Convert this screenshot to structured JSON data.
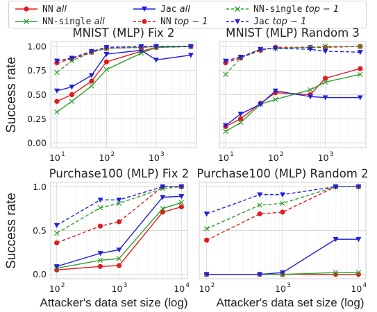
{
  "legend": [
    {
      "code": "NN",
      "sub": "all",
      "color": "#e41a1c",
      "dash": false,
      "marker": "circle"
    },
    {
      "code": "NN-single",
      "sub": "all",
      "color": "#2ca02c",
      "dash": false,
      "marker": "x"
    },
    {
      "code": "Jac",
      "sub": "all",
      "color": "#1f1fdf",
      "dash": false,
      "marker": "triangle-down"
    },
    {
      "code": "NN",
      "sub": "top − 1",
      "color": "#e41a1c",
      "dash": true,
      "marker": "circle"
    },
    {
      "code": "NN-single",
      "sub": "top − 1",
      "color": "#2ca02c",
      "dash": true,
      "marker": "x"
    },
    {
      "code": "Jac",
      "sub": "top − 1",
      "color": "#1f1fdf",
      "dash": true,
      "marker": "triangle-down"
    }
  ],
  "labels": {
    "ylabel": "Success rate",
    "xlabel": "Attacker's data set size (log)"
  },
  "chart_data": [
    {
      "type": "line",
      "title": "MNIST (MLP) Fix 2",
      "xscale": "log",
      "xlim": [
        7.5,
        6500
      ],
      "ylim": [
        -0.05,
        1.05
      ],
      "xticks": [
        {
          "v": 10,
          "base": "10",
          "exp": "1"
        },
        {
          "v": 100,
          "base": "10",
          "exp": "2"
        },
        {
          "v": 1000,
          "base": "10",
          "exp": "3"
        }
      ],
      "yticks": [
        "0.00",
        "0.25",
        "0.50",
        "0.75",
        "1.00"
      ],
      "x": [
        10,
        20,
        50,
        100,
        500,
        1000,
        5000
      ],
      "series": [
        {
          "key": "nn_all",
          "values": [
            0.43,
            0.5,
            0.64,
            0.84,
            0.95,
            0.99,
            1.0
          ]
        },
        {
          "key": "nns_all",
          "values": [
            0.32,
            0.43,
            0.59,
            0.76,
            0.93,
            0.99,
            1.0
          ]
        },
        {
          "key": "jac_all",
          "values": [
            0.54,
            0.58,
            0.7,
            0.92,
            0.96,
            0.86,
            0.91
          ]
        },
        {
          "key": "nn_top1",
          "values": [
            0.83,
            0.87,
            0.94,
            0.98,
            0.99,
            1.0,
            1.0
          ]
        },
        {
          "key": "nns_top1",
          "values": [
            0.73,
            0.85,
            0.94,
            0.98,
            0.99,
            1.0,
            1.0
          ]
        },
        {
          "key": "jac_top1",
          "values": [
            0.85,
            0.88,
            0.95,
            0.99,
            1.0,
            1.0,
            1.0
          ]
        }
      ]
    },
    {
      "type": "line",
      "title": "MNIST (MLP) Random 3",
      "xscale": "log",
      "xlim": [
        7.5,
        6500
      ],
      "ylim": [
        -0.05,
        1.05
      ],
      "xticks": [
        {
          "v": 10,
          "base": "10",
          "exp": "1"
        },
        {
          "v": 100,
          "base": "10",
          "exp": "2"
        },
        {
          "v": 1000,
          "base": "10",
          "exp": "3"
        }
      ],
      "yticks": [],
      "x": [
        10,
        20,
        50,
        100,
        500,
        1000,
        5000
      ],
      "series": [
        {
          "key": "nn_all",
          "values": [
            0.17,
            0.25,
            0.41,
            0.52,
            0.5,
            0.67,
            0.77
          ]
        },
        {
          "key": "nns_all",
          "values": [
            0.12,
            0.21,
            0.4,
            0.45,
            0.55,
            0.63,
            0.71
          ]
        },
        {
          "key": "jac_all",
          "values": [
            0.18,
            0.3,
            0.4,
            0.54,
            0.48,
            0.47,
            0.47
          ]
        },
        {
          "key": "nn_top1",
          "values": [
            0.83,
            0.88,
            0.96,
            0.99,
            0.99,
            0.99,
            1.0
          ]
        },
        {
          "key": "nns_top1",
          "values": [
            0.71,
            0.88,
            0.97,
            0.98,
            0.99,
            1.0,
            1.0
          ]
        },
        {
          "key": "jac_top1",
          "values": [
            0.85,
            0.89,
            0.97,
            0.98,
            0.97,
            0.95,
            0.94
          ]
        }
      ]
    },
    {
      "type": "line",
      "title": "Purchase100 (MLP) Fix 2",
      "xscale": "log",
      "xlim": [
        80,
        12500
      ],
      "ylim": [
        -0.05,
        1.05
      ],
      "xticks": [
        {
          "v": 100,
          "base": "10",
          "exp": "2"
        },
        {
          "v": 1000,
          "base": "10",
          "exp": "3"
        },
        {
          "v": 10000,
          "base": "10",
          "exp": "4"
        }
      ],
      "yticks": [
        "0.0",
        "0.5",
        "1.0"
      ],
      "x": [
        100,
        500,
        1000,
        5000,
        10000
      ],
      "series": [
        {
          "key": "nn_all",
          "values": [
            0.05,
            0.09,
            0.1,
            0.71,
            0.77
          ]
        },
        {
          "key": "nns_all",
          "values": [
            0.07,
            0.16,
            0.18,
            0.75,
            0.82
          ]
        },
        {
          "key": "jac_all",
          "values": [
            0.09,
            0.24,
            0.28,
            0.88,
            0.89
          ]
        },
        {
          "key": "nn_top1",
          "values": [
            0.36,
            0.55,
            0.6,
            1.0,
            1.0
          ]
        },
        {
          "key": "nns_top1",
          "values": [
            0.47,
            0.76,
            0.81,
            0.98,
            1.0
          ]
        },
        {
          "key": "jac_top1",
          "values": [
            0.56,
            0.85,
            0.85,
            1.0,
            1.0
          ]
        }
      ]
    },
    {
      "type": "line",
      "title": "Purchase100 (MLP) Random 2",
      "xscale": "log",
      "xlim": [
        80,
        12500
      ],
      "ylim": [
        -0.05,
        1.05
      ],
      "xticks": [
        {
          "v": 100,
          "base": "10",
          "exp": "2"
        },
        {
          "v": 1000,
          "base": "10",
          "exp": "3"
        },
        {
          "v": 10000,
          "base": "10",
          "exp": "4"
        }
      ],
      "yticks": [],
      "x": [
        100,
        500,
        1000,
        5000,
        10000
      ],
      "series": [
        {
          "key": "nn_all",
          "values": [
            0.0,
            0.0,
            0.0,
            0.0,
            0.0
          ]
        },
        {
          "key": "nns_all",
          "values": [
            0.0,
            0.0,
            0.0,
            0.02,
            0.02
          ]
        },
        {
          "key": "jac_all",
          "values": [
            0.0,
            0.0,
            0.02,
            0.4,
            0.4
          ]
        },
        {
          "key": "nn_top1",
          "values": [
            0.39,
            0.69,
            0.71,
            1.0,
            1.0
          ]
        },
        {
          "key": "nns_top1",
          "values": [
            0.52,
            0.79,
            0.81,
            1.0,
            1.0
          ]
        },
        {
          "key": "jac_top1",
          "values": [
            0.69,
            0.91,
            0.91,
            1.0,
            1.0
          ]
        }
      ]
    }
  ]
}
